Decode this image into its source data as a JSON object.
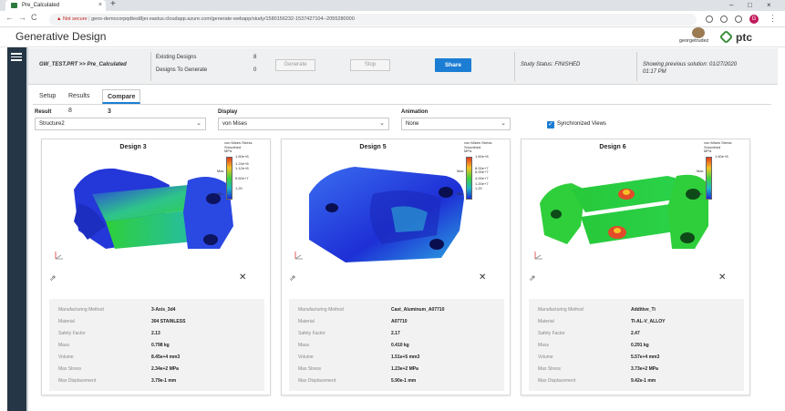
{
  "browser": {
    "tab_title": "Pre_Calculated",
    "tab_close": "×",
    "new_tab": "+",
    "security_label": "Not secure",
    "url": "gens-democorpqdtest8jer.eastus.cloudapp.azure.com/generate-webapp/study/1580156232-1537427104--2055280000",
    "profile_initial": "G",
    "window_controls": [
      "–",
      "□",
      "×"
    ],
    "nav": {
      "back": "←",
      "forward": "→",
      "reload": "C"
    }
  },
  "app": {
    "title": "Generative Design",
    "username": "georgetrudez",
    "logo_text": "ptc"
  },
  "study": {
    "part_path": "GW_TEST.PRT >> Pre_Calculated",
    "existing_label": "Existing Designs",
    "existing_value": "8",
    "to_generate_label": "Designs To Generate",
    "to_generate_value": "0",
    "generate_label": "Generate",
    "stop_label": "Stop",
    "share_label": "Share",
    "status_text": "Study Status: FINISHED",
    "previous_line1": "Showing previous solution: 01/27/2020",
    "previous_line2": "01:17 PM"
  },
  "tabs": [
    {
      "label": "Setup",
      "active": false
    },
    {
      "label": "Results 8",
      "active": false
    },
    {
      "label": "Compare 3",
      "active": true
    }
  ],
  "controls": {
    "result_label": "Result",
    "result_value": "Structure2",
    "display_label": "Display",
    "display_value": "von Mises",
    "animation_label": "Animation",
    "animation_value": "None",
    "sync_label": "Synchronized Views",
    "sync_checked": true
  },
  "legend_title": [
    "von Mises Stress",
    "Smoothed",
    "MPa"
  ],
  "legend_max_label": "Max",
  "legend_min_label": "Min",
  "property_labels": [
    "Manufacturing Method",
    "Material",
    "Safety Factor",
    "Mass",
    "Volume",
    "Max Stress",
    "Max Displacement"
  ],
  "cards": [
    {
      "title": "Design 3",
      "legend_values": [
        "1.60e+8",
        "1.24e+8",
        "1.12e+8",
        "",
        "5.60e+7",
        "",
        "1.20"
      ],
      "values": [
        "3-Axis_3d4",
        "304 STAINLESS",
        "2.13",
        "0.798 kg",
        "8.45e+4 mm3",
        "2.34e+2 MPa",
        "3.79e-1 mm"
      ]
    },
    {
      "title": "Design 5",
      "legend_values": [
        "1.60e+8",
        "",
        "8.00e+7",
        "6.00e+7",
        "4.00e+7",
        "1.20e+7",
        "1.20"
      ],
      "values": [
        "Cast_Aluminum_A07710",
        "A07710",
        "2.17",
        "0.410 kg",
        "1.51e+5 mm3",
        "1.23e+2 MPa",
        "5.90e-1 mm"
      ]
    },
    {
      "title": "Design 6",
      "legend_values": [
        "1.60e+8",
        "",
        "",
        "",
        "",
        "",
        ""
      ],
      "values": [
        "Additive_Ti",
        "TI-AL-V_ALLOY",
        "2.47",
        "0.291 kg",
        "5.57e+4 mm3",
        "3.73e+2 MPa",
        "9.42e-1 mm"
      ]
    }
  ],
  "icons": {
    "expand": "⇗",
    "close": "✕",
    "chevron": "⌄",
    "check": "✓"
  },
  "colors": {
    "primary": "#1b7dd3",
    "rail": "#253746",
    "part_blue": "#1e2fd6",
    "part_green": "#2fcf3b",
    "part_red": "#e34a2a"
  }
}
